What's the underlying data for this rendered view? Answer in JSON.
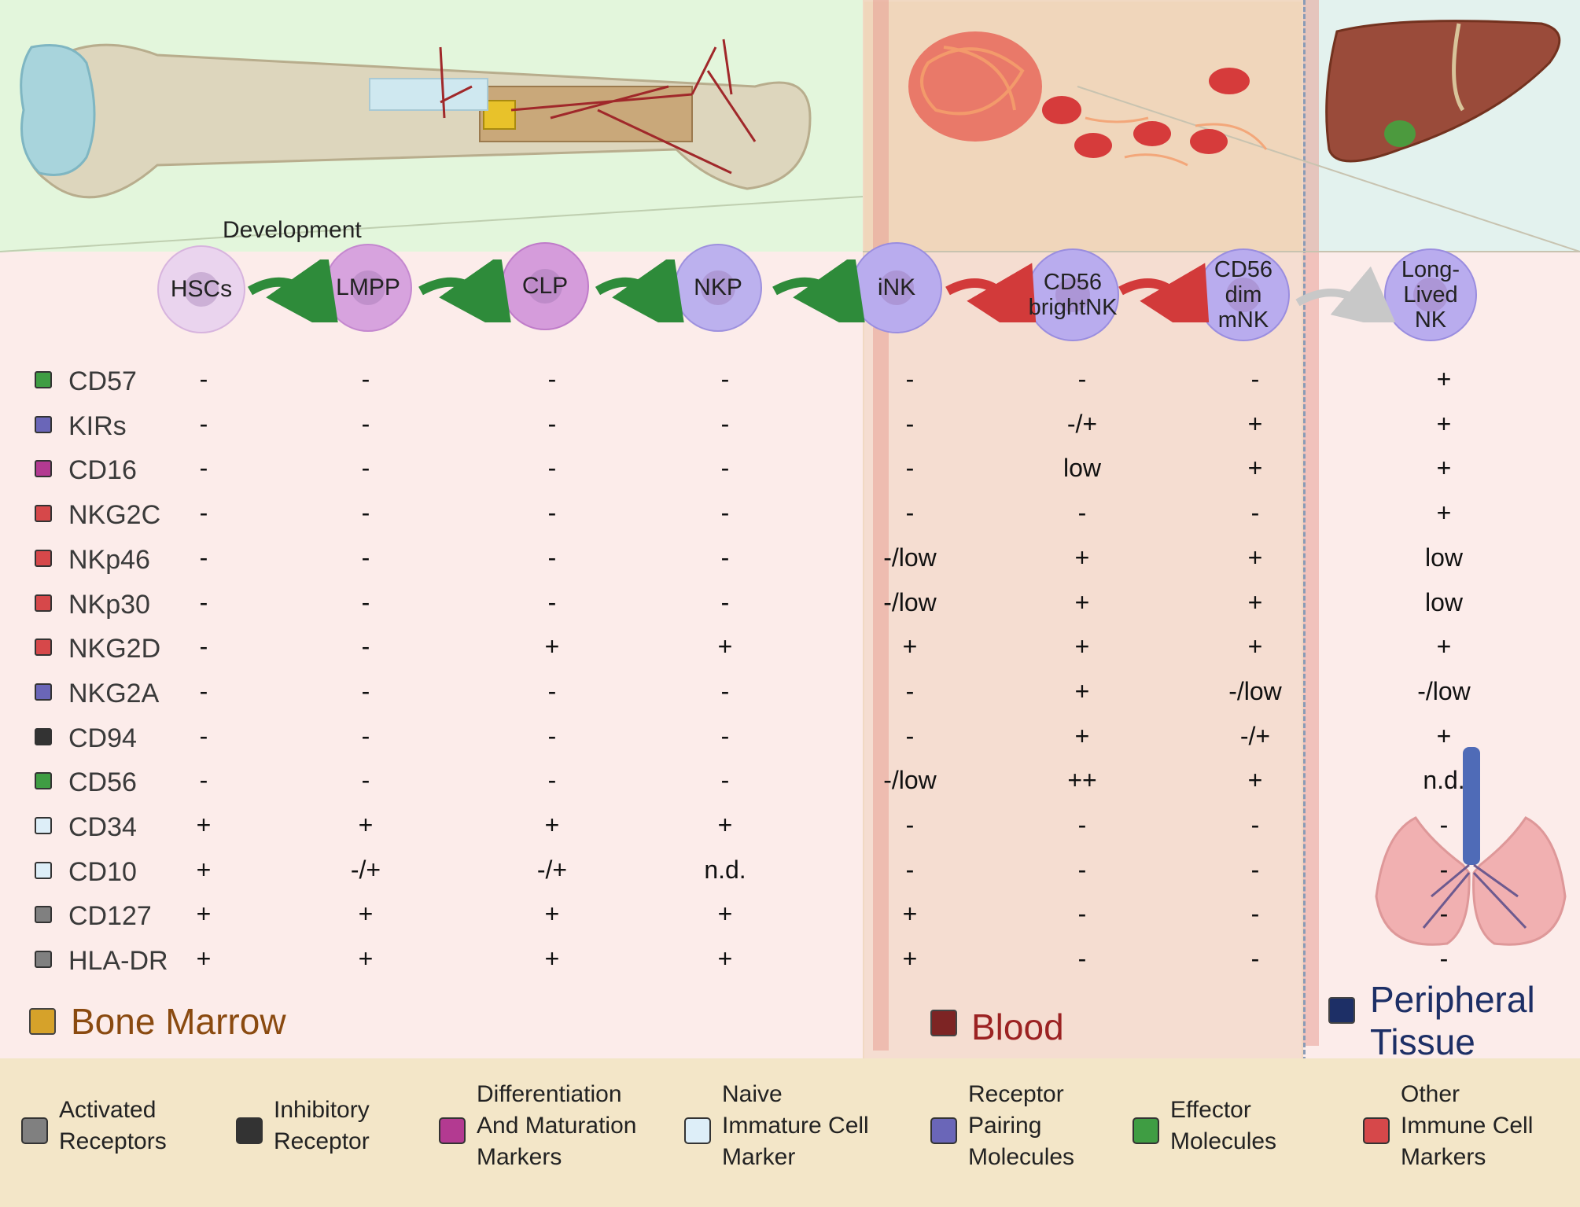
{
  "colors": {
    "bone_marrow": "#d6a22a",
    "blood": "#7d2424",
    "peripheral": "#1d2f66",
    "arrow_green": "#2e8b3a",
    "arrow_red": "#d23a3a",
    "arrow_gray": "#c8c8c8"
  },
  "development_label": "Development",
  "cells": [
    {
      "label": "HSCs",
      "fill": "#ead4ee",
      "stroke": "#d7b4de"
    },
    {
      "label": "LMPP",
      "fill": "#d7a3de",
      "stroke": "#c488cf"
    },
    {
      "label": "CLP",
      "fill": "#d59cdb",
      "stroke": "#bf7cc9"
    },
    {
      "label": "NKP",
      "fill": "#bcb1ee",
      "stroke": "#9e91de"
    },
    {
      "label": "iNK",
      "fill": "#b9acee",
      "stroke": "#9a8ddf"
    },
    {
      "label": "CD56 brightNK",
      "fill": "#b9acee",
      "stroke": "#9a8ddf"
    },
    {
      "label": "CD56 dim mNK",
      "fill": "#b9acee",
      "stroke": "#9a8ddf"
    },
    {
      "label": "Long-Lived NK",
      "fill": "#b9acee",
      "stroke": "#9a8ddf"
    }
  ],
  "arrows": [
    "green",
    "green",
    "green",
    "green",
    "red",
    "red",
    "gray"
  ],
  "markers": [
    {
      "name": "CD57",
      "color": "#3f9d43",
      "values": [
        "-",
        "-",
        "-",
        "-",
        "-",
        "-",
        "-",
        "+"
      ]
    },
    {
      "name": "KIRs",
      "color": "#6a66b8",
      "values": [
        "-",
        "-",
        "-",
        "-",
        "-",
        "-/+",
        "+",
        "+"
      ]
    },
    {
      "name": "CD16",
      "color": "#b33a91",
      "values": [
        "-",
        "-",
        "-",
        "-",
        "-",
        "low",
        "+",
        "+"
      ]
    },
    {
      "name": "NKG2C",
      "color": "#d6484a",
      "values": [
        "-",
        "-",
        "-",
        "-",
        "-",
        "-",
        "-",
        "+"
      ]
    },
    {
      "name": "NKp46",
      "color": "#d6484a",
      "values": [
        "-",
        "-",
        "-",
        "-",
        "-/low",
        "+",
        "+",
        "low"
      ]
    },
    {
      "name": "NKp30",
      "color": "#d6484a",
      "values": [
        "-",
        "-",
        "-",
        "-",
        "-/low",
        "+",
        "+",
        "low"
      ]
    },
    {
      "name": "NKG2D",
      "color": "#d6484a",
      "values": [
        "-",
        "-",
        "+",
        "+",
        "+",
        "+",
        "+",
        "+"
      ]
    },
    {
      "name": "NKG2A",
      "color": "#6a66b8",
      "values": [
        "-",
        "-",
        "-",
        "-",
        "-",
        "+",
        "-/low",
        "-/low"
      ]
    },
    {
      "name": "CD94",
      "color": "#333333",
      "values": [
        "-",
        "-",
        "-",
        "-",
        "-",
        "+",
        "-/+",
        "+"
      ]
    },
    {
      "name": "CD56",
      "color": "#3f9d43",
      "values": [
        "-",
        "-",
        "-",
        "-",
        "-/low",
        "++",
        "+",
        "n.d."
      ]
    },
    {
      "name": "CD34",
      "color": "#ddeef8",
      "values": [
        "+",
        "+",
        "+",
        "+",
        "-",
        "-",
        "-",
        "-"
      ]
    },
    {
      "name": "CD10",
      "color": "#ddeef8",
      "values": [
        "+",
        "-/+",
        "-/+",
        "n.d.",
        "-",
        "-",
        "-",
        "-"
      ]
    },
    {
      "name": "CD127",
      "color": "#808080",
      "values": [
        "+",
        "+",
        "+",
        "+",
        "+",
        "-",
        "-",
        "-"
      ]
    },
    {
      "name": "HLA-DR",
      "color": "#808080",
      "values": [
        "+",
        "+",
        "+",
        "+",
        "+",
        "-",
        "-",
        "-"
      ]
    }
  ],
  "regions": {
    "bone_marrow": "Bone Marrow",
    "blood": "Blood",
    "peripheral_line1": "Peripheral",
    "peripheral_line2": "Tissue"
  },
  "legend": [
    {
      "lines": [
        "Activated",
        "Receptors"
      ],
      "color": "#808080"
    },
    {
      "lines": [
        "Inhibitory",
        "Receptor"
      ],
      "color": "#333333"
    },
    {
      "lines": [
        "Differentiation",
        "And Maturation",
        "Markers"
      ],
      "color": "#b33a91"
    },
    {
      "lines": [
        "Naive",
        "Immature Cell",
        "Marker"
      ],
      "color": "#ddeef8"
    },
    {
      "lines": [
        "Receptor",
        "Pairing",
        "Molecules"
      ],
      "color": "#6a66b8"
    },
    {
      "lines": [
        "Effector",
        "Molecules"
      ],
      "color": "#3f9d43"
    },
    {
      "lines": [
        "Other",
        "Immune Cell",
        "Markers"
      ],
      "color": "#d6484a"
    }
  ]
}
